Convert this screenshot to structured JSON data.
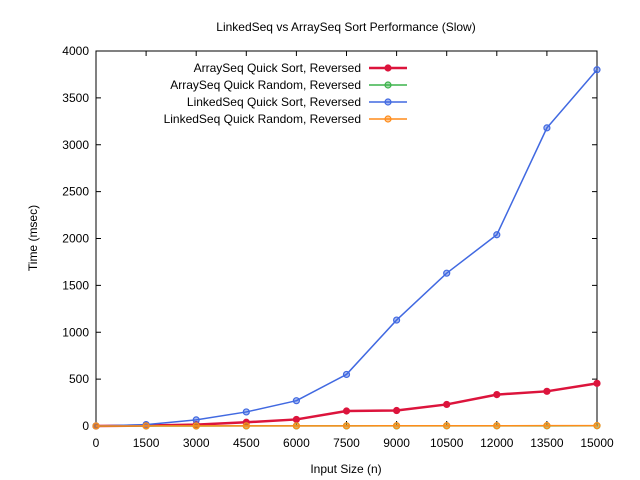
{
  "chart_data": {
    "type": "line",
    "title": "LinkedSeq vs ArraySeq Sort Performance (Slow)",
    "xlabel": "Input Size (n)",
    "ylabel": "Time (msec)",
    "xlim": [
      0,
      15000
    ],
    "ylim": [
      0,
      4000
    ],
    "x_ticks": [
      0,
      1500,
      3000,
      4500,
      6000,
      7500,
      9000,
      10500,
      12000,
      13500,
      15000
    ],
    "y_ticks": [
      0,
      500,
      1000,
      1500,
      2000,
      2500,
      3000,
      3500,
      4000
    ],
    "grid": false,
    "legend_position": "top-left",
    "x": [
      0,
      1500,
      3000,
      4500,
      6000,
      7500,
      9000,
      10500,
      12000,
      13500,
      15000
    ],
    "series": [
      {
        "name": "ArraySeq Quick Sort, Reversed",
        "color": "#dc143c",
        "values": [
          0,
          5,
          15,
          40,
          70,
          160,
          165,
          230,
          335,
          370,
          455
        ]
      },
      {
        "name": "ArraySeq Quick Random, Reversed",
        "color": "#3cb44b",
        "values": [
          0,
          0,
          0,
          1,
          1,
          1,
          1,
          2,
          2,
          2,
          3
        ]
      },
      {
        "name": "LinkedSeq Quick Sort, Reversed",
        "color": "#4169e1",
        "values": [
          0,
          15,
          65,
          150,
          270,
          550,
          1130,
          1630,
          2040,
          3180,
          3800
        ]
      },
      {
        "name": "LinkedSeq Quick Random, Reversed",
        "color": "#ff8c1a",
        "values": [
          0,
          1,
          1,
          2,
          2,
          2,
          3,
          3,
          3,
          4,
          4
        ]
      }
    ]
  }
}
